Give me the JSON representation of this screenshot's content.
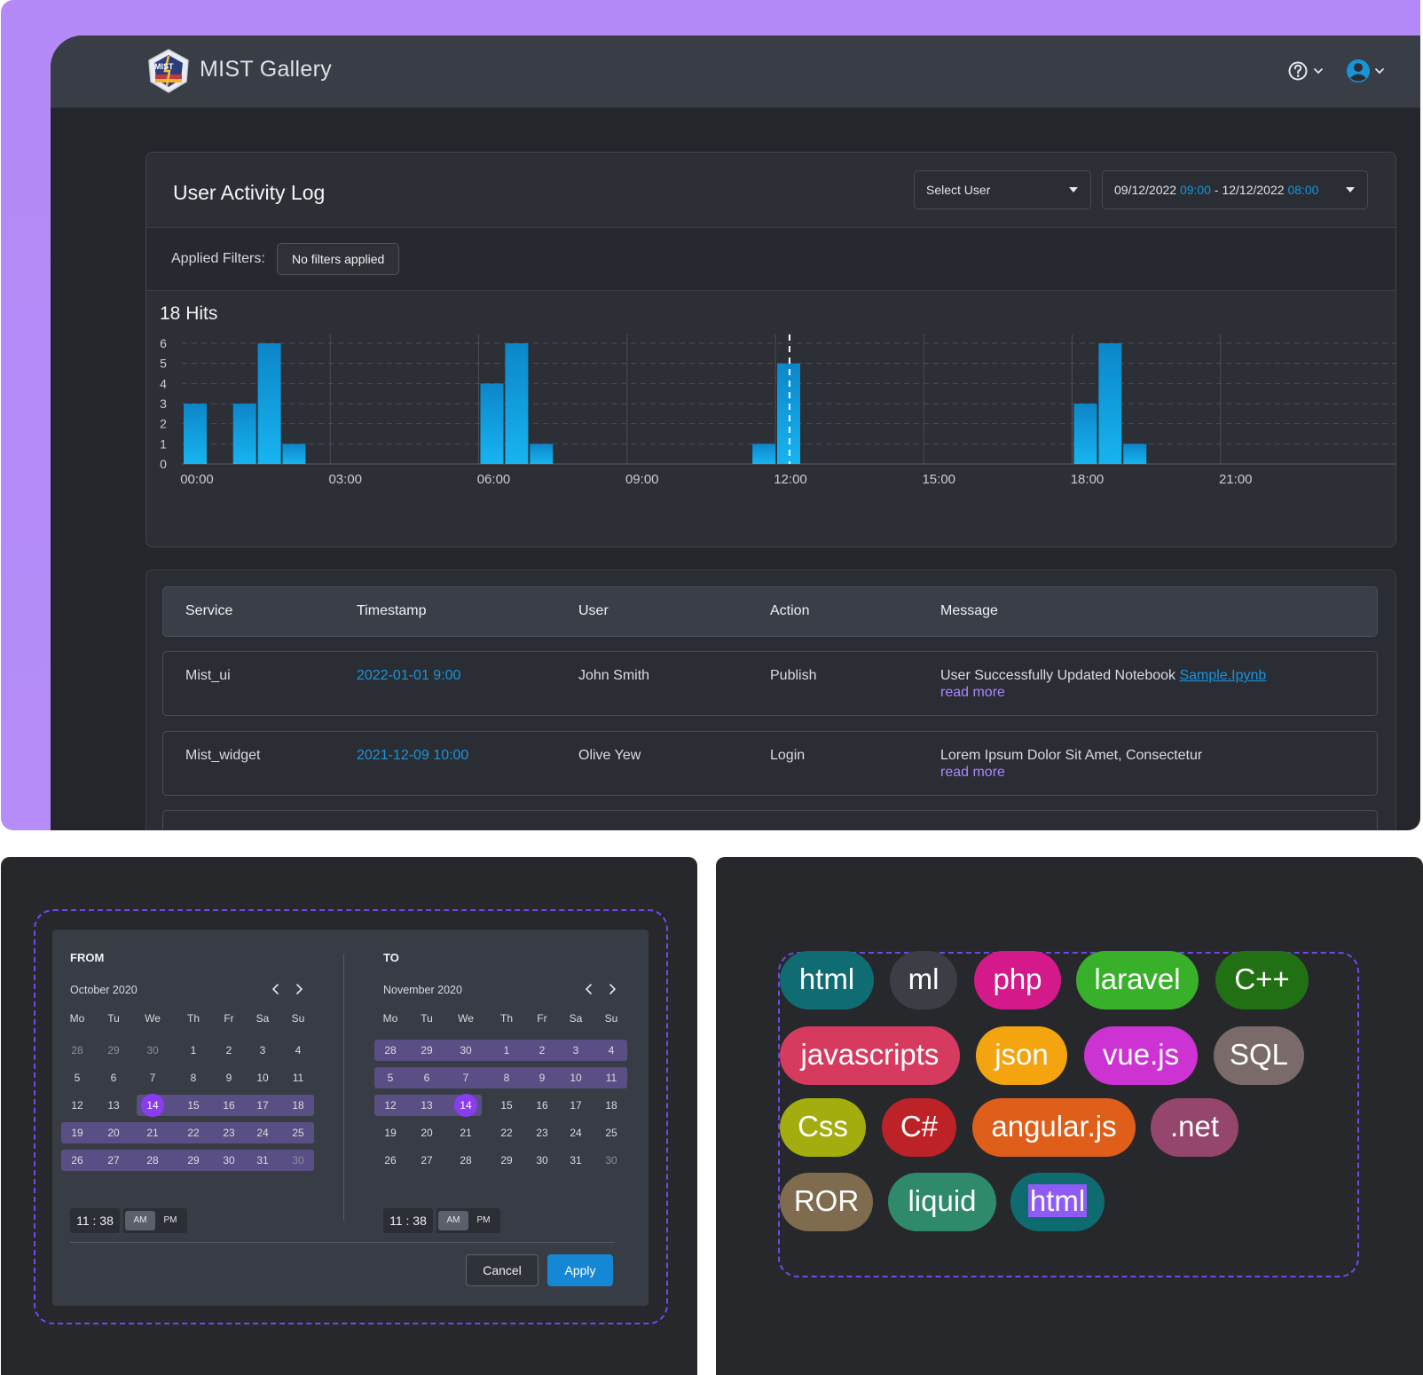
{
  "app": {
    "title": "MIST Gallery",
    "logo_text": "MIST"
  },
  "activity": {
    "title": "User Activity Log",
    "select_user": "Select User",
    "date_range": {
      "start_date": "09/12/2022",
      "start_time": "09:00",
      "separator": " - ",
      "end_date": "12/12/2022",
      "end_time": "08:00"
    },
    "filters_label": "Applied Filters:",
    "filters_value": "No filters applied",
    "hits_label": "18 Hits"
  },
  "chart_data": {
    "type": "bar",
    "x_ticks": [
      "00:00",
      "03:00",
      "06:00",
      "09:00",
      "12:00",
      "15:00",
      "18:00",
      "21:00"
    ],
    "y_ticks": [
      "0",
      "1",
      "2",
      "3",
      "4",
      "5",
      "6"
    ],
    "ylim": [
      0,
      6
    ],
    "xlim_hours": [
      0,
      24
    ],
    "bars": [
      {
        "hour": 0.0,
        "value": 3
      },
      {
        "hour": 1.0,
        "value": 3
      },
      {
        "hour": 1.5,
        "value": 6
      },
      {
        "hour": 2.0,
        "value": 1
      },
      {
        "hour": 6.0,
        "value": 4
      },
      {
        "hour": 6.5,
        "value": 6
      },
      {
        "hour": 7.0,
        "value": 1
      },
      {
        "hour": 11.5,
        "value": 1
      },
      {
        "hour": 12.0,
        "value": 5
      },
      {
        "hour": 18.0,
        "value": 3
      },
      {
        "hour": 18.5,
        "value": 6
      },
      {
        "hour": 19.0,
        "value": 1
      }
    ],
    "marker_hour": 12.25,
    "grid": true,
    "bar_color": "#139bd9"
  },
  "table": {
    "headers": [
      "Service",
      "Timestamp",
      "User",
      "Action",
      "Message"
    ],
    "rows": [
      {
        "service": "Mist_ui",
        "timestamp": "2022-01-01 9:00",
        "user": "John Smith",
        "action": "Publish",
        "message": "User Successfully Updated Notebook ",
        "message_link": "Sample.Ipynb",
        "read_more": "read more"
      },
      {
        "service": "Mist_widget",
        "timestamp": "2021-12-09 10:00",
        "user": "Olive Yew",
        "action": "Login",
        "message": "Lorem Ipsum Dolor Sit Amet, Consectetur",
        "message_link": "",
        "read_more": "read more"
      }
    ]
  },
  "picker": {
    "from": {
      "label": "FROM",
      "month": "October  2020",
      "weekdays": [
        "Mo",
        "Tu",
        "We",
        "Th",
        "Fr",
        "Sa",
        "Su"
      ],
      "weeks": [
        [
          "28",
          "29",
          "30",
          "1",
          "2",
          "3",
          "4"
        ],
        [
          "5",
          "6",
          "7",
          "8",
          "9",
          "10",
          "11"
        ],
        [
          "12",
          "13",
          "14",
          "15",
          "16",
          "17",
          "18"
        ],
        [
          "19",
          "20",
          "21",
          "22",
          "23",
          "24",
          "25"
        ],
        [
          "26",
          "27",
          "28",
          "29",
          "30",
          "31",
          "30"
        ]
      ],
      "muted": [
        [
          0,
          0
        ],
        [
          0,
          1
        ],
        [
          0,
          2
        ],
        [
          4,
          6
        ]
      ],
      "selected": [
        2,
        2
      ],
      "time_hour": "11",
      "time_minute": "38"
    },
    "to": {
      "label": "TO",
      "month": "November  2020",
      "weekdays": [
        "Mo",
        "Tu",
        "We",
        "Th",
        "Fr",
        "Sa",
        "Su"
      ],
      "weeks": [
        [
          "28",
          "29",
          "30",
          "1",
          "2",
          "3",
          "4"
        ],
        [
          "5",
          "6",
          "7",
          "8",
          "9",
          "10",
          "11"
        ],
        [
          "12",
          "13",
          "14",
          "15",
          "16",
          "17",
          "18"
        ],
        [
          "19",
          "20",
          "21",
          "22",
          "23",
          "24",
          "25"
        ],
        [
          "26",
          "27",
          "28",
          "29",
          "30",
          "31",
          "30"
        ]
      ],
      "muted": [
        [
          4,
          6
        ]
      ],
      "selected": [
        2,
        2
      ],
      "time_hour": "11",
      "time_minute": "38"
    },
    "time_separator": ":",
    "am": "AM",
    "pm": "PM",
    "cancel": "Cancel",
    "apply": "Apply"
  },
  "tags": [
    {
      "label": "html",
      "color": "#0f6c72"
    },
    {
      "label": "ml",
      "color": "#3b3e45"
    },
    {
      "label": "php",
      "color": "#d4198a"
    },
    {
      "label": "laravel",
      "color": "#38b02a"
    },
    {
      "label": "C++",
      "color": "#217013"
    },
    {
      "label": "javascripts",
      "color": "#d63b5f"
    },
    {
      "label": "json",
      "color": "#f3a40e"
    },
    {
      "label": "vue.js",
      "color": "#cc33d2"
    },
    {
      "label": "SQL",
      "color": "#7a6b6a"
    },
    {
      "label": "Css",
      "color": "#a3ad0d"
    },
    {
      "label": "C#",
      "color": "#bd2226"
    },
    {
      "label": "angular.js",
      "color": "#df5e19"
    },
    {
      "label": ".net",
      "color": "#94466d"
    },
    {
      "label": "ROR",
      "color": "#7f6c4f"
    },
    {
      "label": "liquid",
      "color": "#2e8a6b"
    },
    {
      "label": "html",
      "color": "#0e6c71"
    }
  ]
}
